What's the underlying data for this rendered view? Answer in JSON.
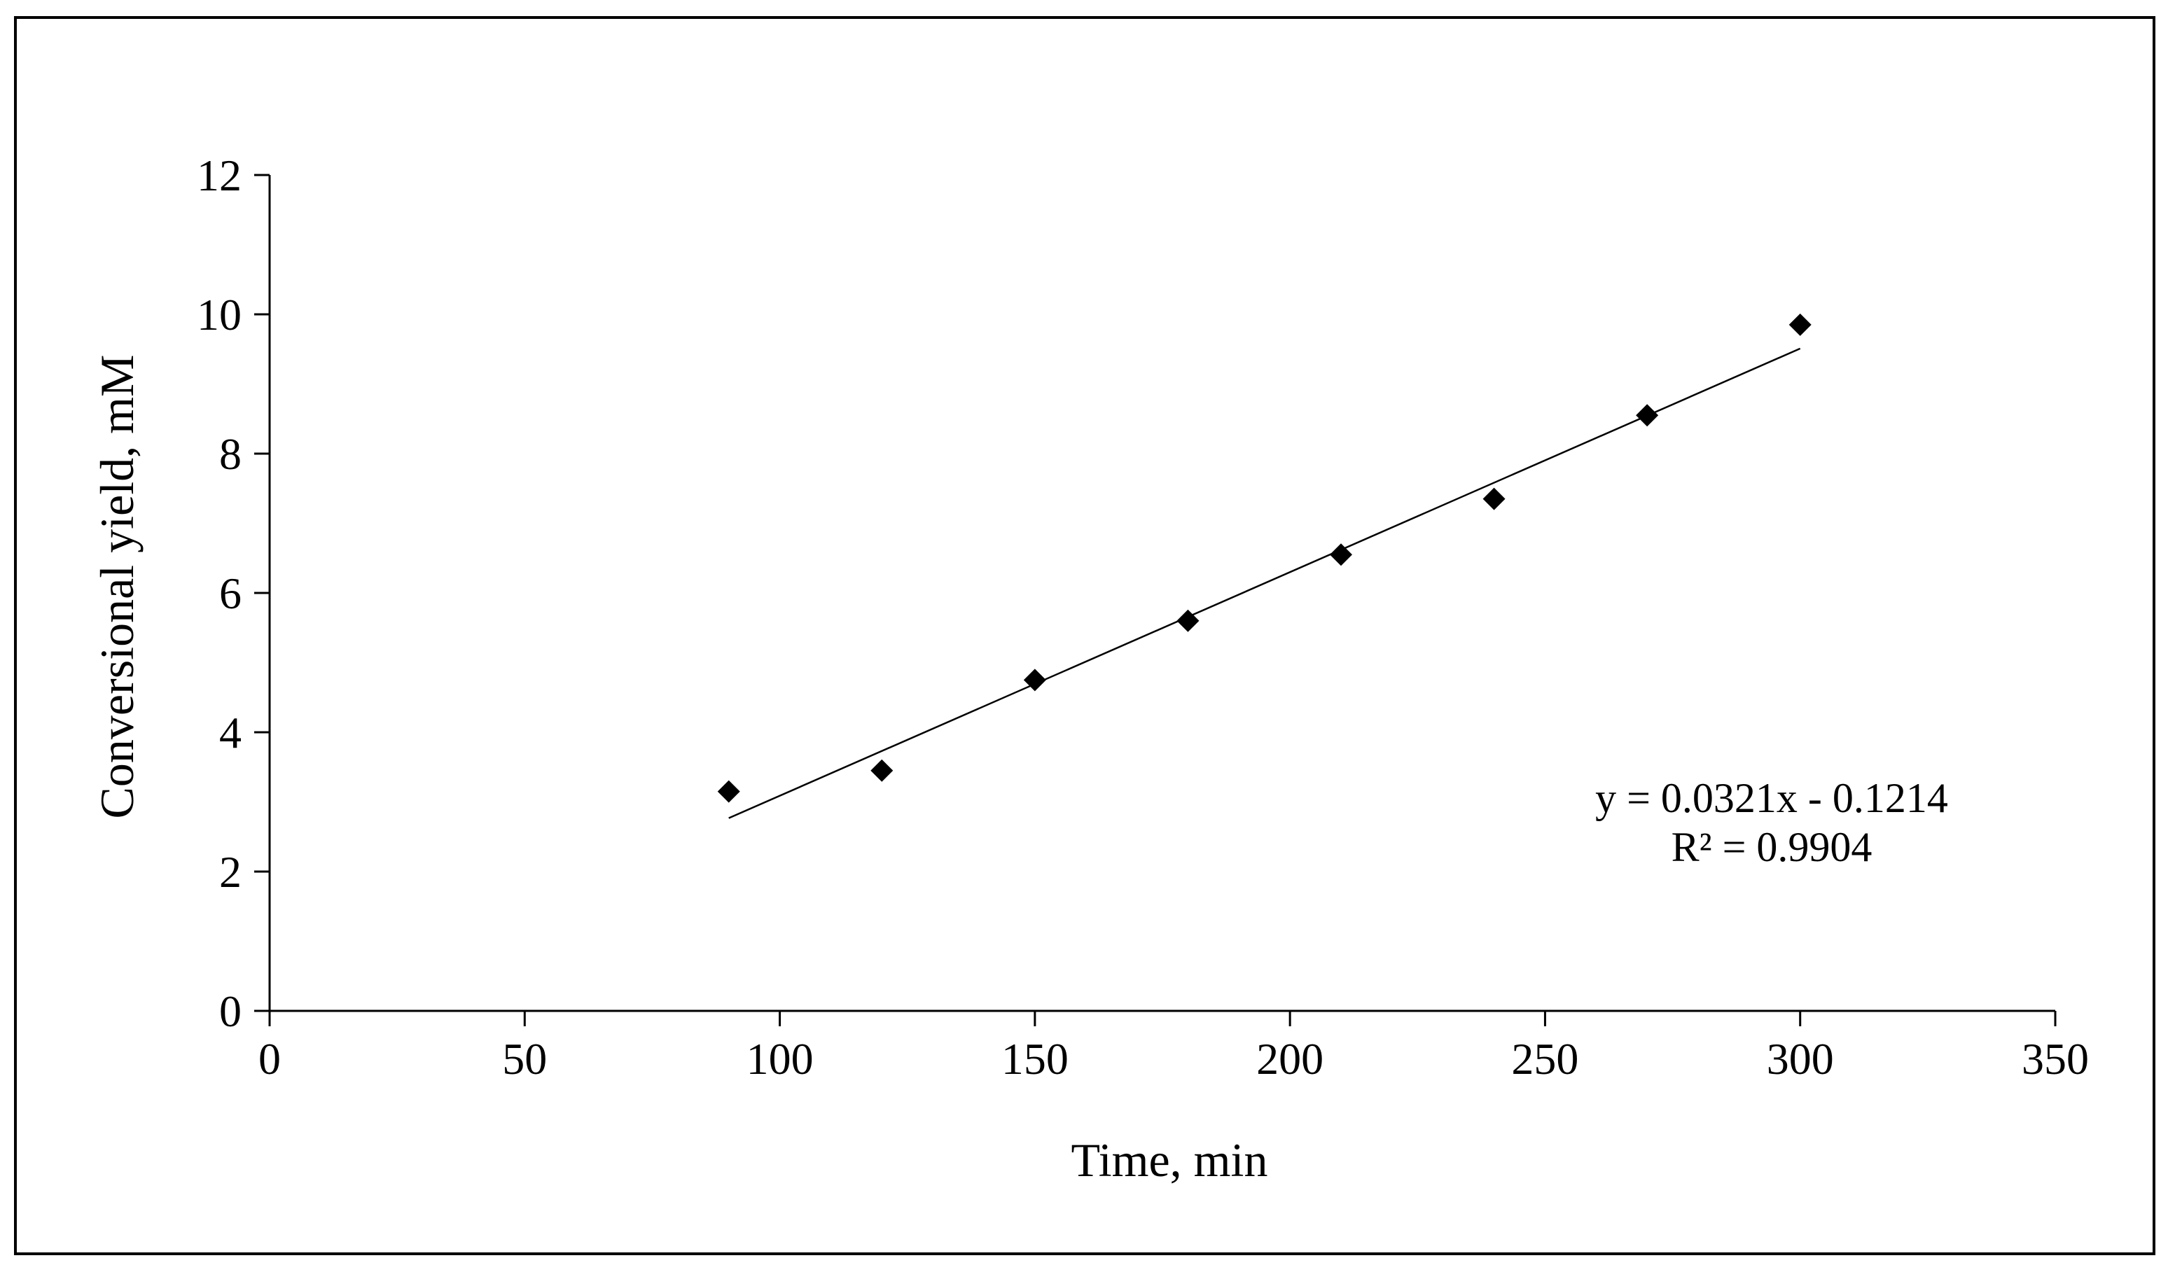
{
  "chart_data": {
    "type": "scatter",
    "xlabel": "Time, min",
    "ylabel": "Conversional yield, mM",
    "xlim": [
      0,
      350
    ],
    "ylim": [
      0,
      12
    ],
    "xticks": [
      0,
      50,
      100,
      150,
      200,
      250,
      300,
      350
    ],
    "yticks": [
      0,
      2,
      4,
      6,
      8,
      10,
      12
    ],
    "grid": false,
    "legend": "none",
    "series": [
      {
        "marker": "diamond",
        "color": "#000000",
        "x": [
          90,
          120,
          150,
          180,
          210,
          240,
          270,
          300
        ],
        "y": [
          3.15,
          3.45,
          4.75,
          5.6,
          6.55,
          7.35,
          8.55,
          9.85
        ]
      }
    ],
    "trendline": {
      "slope": 0.0321,
      "intercept": -0.1214,
      "x_range": [
        90,
        300
      ],
      "equation_label": "y = 0.0321x - 0.1214",
      "r2_label": "R² = 0.9904"
    }
  }
}
